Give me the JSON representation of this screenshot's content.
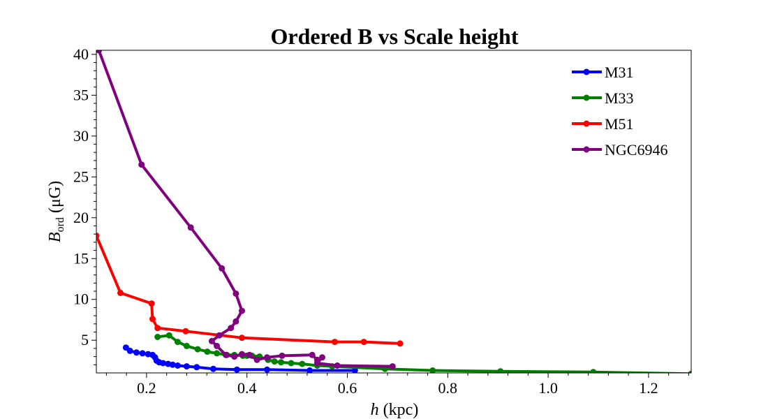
{
  "chart_data": {
    "type": "line",
    "title": "Ordered B vs Scale height",
    "xlabel": {
      "var": "h",
      "unit": " (kpc)"
    },
    "ylabel": {
      "var": "B",
      "sub": "ord",
      "unit": "(μG)"
    },
    "xlim": [
      0.1,
      1.285
    ],
    "ylim": [
      1.0,
      40.5
    ],
    "xticks": [
      0.2,
      0.4,
      0.6,
      0.8,
      1.0,
      1.2
    ],
    "xtick_labels": [
      "0.2",
      "0.4",
      "0.6",
      "0.8",
      "1.0",
      "1.2"
    ],
    "yticks": [
      5,
      10,
      15,
      20,
      25,
      30,
      35,
      40
    ],
    "ytick_labels": [
      "5",
      "10",
      "15",
      "20",
      "25",
      "30",
      "35",
      "40"
    ],
    "grid": false,
    "legend_position": "upper-right",
    "series": [
      {
        "name": "M31",
        "color": "#0000ff",
        "x": [
          0.159,
          0.167,
          0.18,
          0.192,
          0.203,
          0.212,
          0.217,
          0.22,
          0.225,
          0.233,
          0.243,
          0.252,
          0.262,
          0.28,
          0.3,
          0.333,
          0.38,
          0.44,
          0.525,
          0.615
        ],
        "y": [
          4.1,
          3.7,
          3.5,
          3.4,
          3.3,
          3.2,
          2.9,
          2.5,
          2.3,
          2.2,
          2.1,
          2.0,
          1.9,
          1.8,
          1.7,
          1.5,
          1.4,
          1.4,
          1.3,
          1.3
        ]
      },
      {
        "name": "M33",
        "color": "#008000",
        "x": [
          0.222,
          0.245,
          0.262,
          0.28,
          0.302,
          0.321,
          0.34,
          0.36,
          0.375,
          0.392,
          0.4,
          0.41,
          0.425,
          0.442,
          0.455,
          0.468,
          0.488,
          0.51,
          0.54,
          0.57,
          0.675,
          0.77,
          0.905,
          1.09,
          1.285
        ],
        "y": [
          5.4,
          5.6,
          4.8,
          4.3,
          3.9,
          3.6,
          3.4,
          3.2,
          3.2,
          3.1,
          3.1,
          3.1,
          3.0,
          2.6,
          2.4,
          2.3,
          2.2,
          2.1,
          1.9,
          1.8,
          1.5,
          1.3,
          1.2,
          1.1,
          0.9
        ]
      },
      {
        "name": "M51",
        "color": "#ff0000",
        "x": [
          0.1,
          0.148,
          0.21,
          0.212,
          0.222,
          0.278,
          0.39,
          0.575,
          0.633,
          0.705
        ],
        "y": [
          17.8,
          10.8,
          9.5,
          7.6,
          6.5,
          6.1,
          5.3,
          4.8,
          4.8,
          4.6
        ]
      },
      {
        "name": "NGC6946",
        "color": "#800080",
        "x": [
          0.105,
          0.19,
          0.288,
          0.35,
          0.378,
          0.39,
          0.378,
          0.368,
          0.345,
          0.33,
          0.34,
          0.358,
          0.375,
          0.39,
          0.405,
          0.42,
          0.44,
          0.47,
          0.53,
          0.54,
          0.55,
          0.54,
          0.58,
          0.69
        ],
        "y": [
          40.5,
          26.5,
          18.8,
          13.8,
          10.7,
          8.6,
          7.3,
          6.5,
          5.6,
          4.9,
          4.3,
          3.2,
          3.0,
          3.3,
          3.2,
          2.6,
          2.9,
          3.1,
          3.2,
          2.6,
          2.9,
          2.2,
          1.9,
          1.8
        ]
      }
    ]
  }
}
